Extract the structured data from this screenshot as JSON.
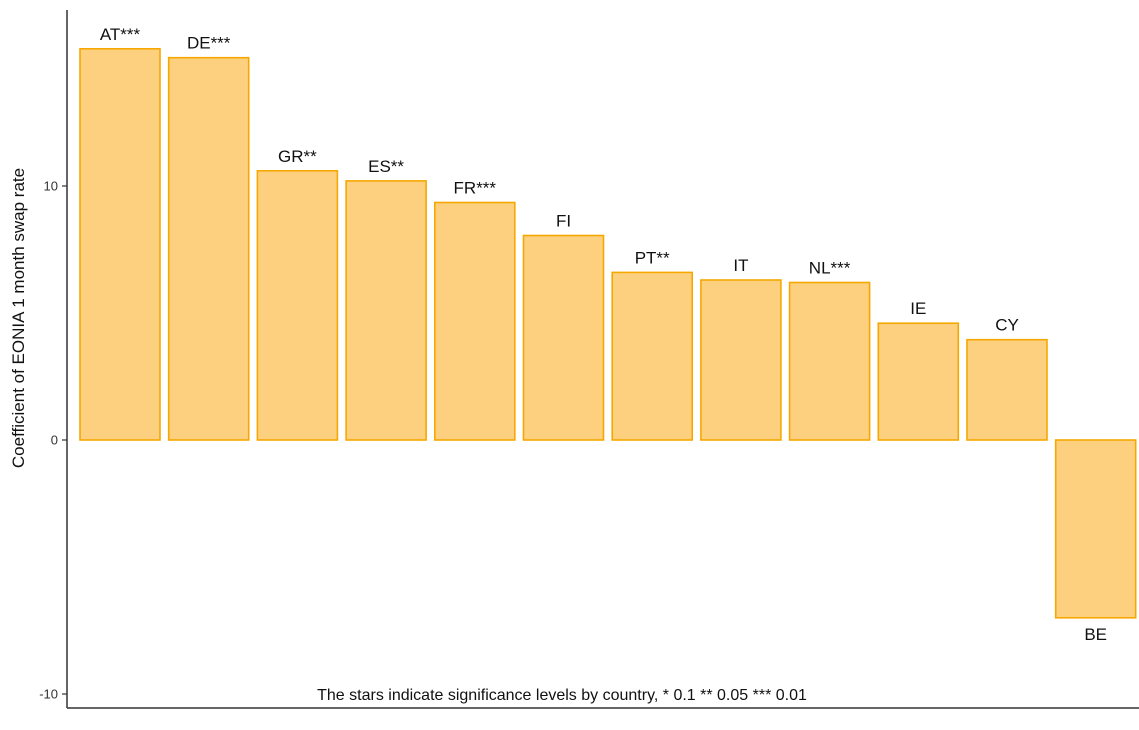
{
  "chart_data": {
    "type": "bar",
    "categories": [
      "AT",
      "DE",
      "GR",
      "ES",
      "FR",
      "FI",
      "PT",
      "IT",
      "NL",
      "IE",
      "CY",
      "BE"
    ],
    "labels": [
      "AT***",
      "DE***",
      "GR**",
      "ES**",
      "FR***",
      "FI",
      "PT**",
      "IT",
      "NL***",
      "IE",
      "CY",
      "BE"
    ],
    "values": [
      15.4,
      15.05,
      10.6,
      10.2,
      9.35,
      8.05,
      6.6,
      6.3,
      6.2,
      4.6,
      3.95,
      -7.0
    ],
    "title": "",
    "xlabel": "",
    "ylabel": "Coefficient of EONIA 1 month swap rate",
    "ylim": [
      -10.2,
      16.8
    ],
    "yticks": [
      "-10",
      "0",
      "10"
    ],
    "ytick_values": [
      -10,
      0,
      10
    ],
    "annotation": "The stars indicate significance levels by country, * 0.1 ** 0.05 *** 0.01",
    "grid": false,
    "legend": "none",
    "colors": {
      "bar_fill": "#fdd080",
      "bar_stroke": "#f7a800",
      "axis": "#333333"
    }
  }
}
